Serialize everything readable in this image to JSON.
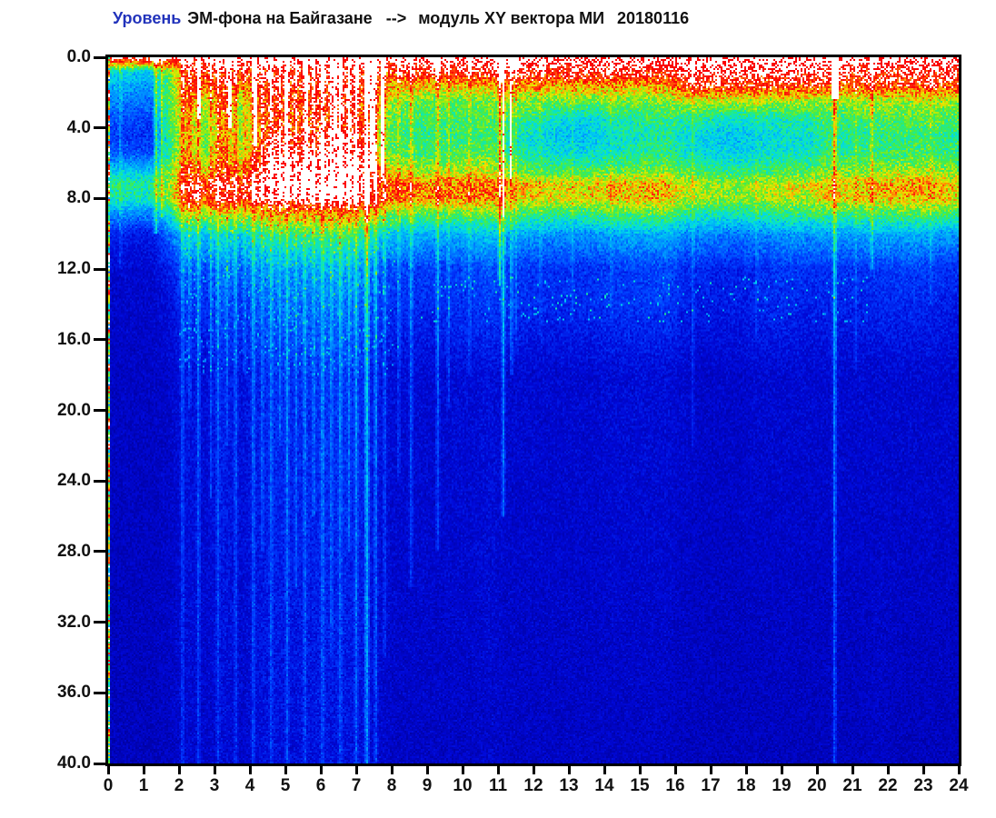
{
  "title": {
    "part1": "Уровень",
    "part2": "ЭМ-фона на Байгазане",
    "arrow": "--&gt;",
    "arrow_text": "-->",
    "part3": "модуль XY вектора МИ",
    "date": "20180116",
    "part1_color": "#2233bb",
    "text_color": "#111111"
  },
  "chart_data": {
    "type": "heatmap",
    "title": "Уровень ЭМ-фона на Байгазане --> модуль XY вектора МИ 20180116",
    "xlabel": "",
    "ylabel": "",
    "xlim": [
      0,
      24
    ],
    "ylim": [
      0,
      40
    ],
    "y_inverted": true,
    "x_ticks": [
      "0",
      "1",
      "2",
      "3",
      "4",
      "5",
      "6",
      "7",
      "8",
      "9",
      "10",
      "11",
      "12",
      "13",
      "14",
      "15",
      "16",
      "17",
      "18",
      "19",
      "20",
      "21",
      "22",
      "23",
      "24"
    ],
    "y_ticks": [
      "0.0",
      "4.0",
      "8.0",
      "12.0",
      "16.0",
      "20.0",
      "24.0",
      "28.0",
      "32.0",
      "36.0",
      "40.0"
    ],
    "grid": false,
    "legend": false,
    "colormap": "jet with over-saturation rendered white",
    "colormap_stops": [
      [
        0.0,
        0,
        0,
        160
      ],
      [
        0.08,
        0,
        8,
        215
      ],
      [
        0.16,
        0,
        60,
        255
      ],
      [
        0.26,
        0,
        150,
        255
      ],
      [
        0.36,
        0,
        215,
        235
      ],
      [
        0.44,
        25,
        235,
        155
      ],
      [
        0.52,
        70,
        235,
        70
      ],
      [
        0.6,
        155,
        235,
        15
      ],
      [
        0.68,
        235,
        230,
        0
      ],
      [
        0.76,
        255,
        150,
        0
      ],
      [
        0.84,
        255,
        55,
        10
      ],
      [
        0.93,
        248,
        5,
        8
      ],
      [
        0.985,
        255,
        0,
        0
      ]
    ],
    "white_above": 0.985,
    "intensity_scale": {
      "min": 0,
      "max": 100,
      "note": "relative units estimated from colors; >97 renders white"
    },
    "time_slot_hours": 0.5,
    "depth_nodes": [
      0,
      0.8,
      1.6,
      2.5,
      3.5,
      4.5,
      5.5,
      6.5,
      7.2,
      8,
      8.8,
      10,
      12,
      13.8,
      18,
      40
    ],
    "intensity_grid": [
      [
        102,
        102,
        102,
        102,
        102,
        102,
        102,
        102,
        102,
        102,
        102,
        102,
        102,
        102,
        102,
        102,
        102,
        102,
        102,
        102,
        102,
        102,
        102,
        102,
        102,
        102,
        102,
        102,
        102,
        102,
        102,
        102,
        102,
        102,
        102,
        102,
        102,
        102,
        102,
        102,
        102,
        102,
        102,
        102,
        102,
        102,
        102,
        102
      ],
      [
        38,
        36,
        35,
        60,
        90,
        88,
        92,
        87,
        91,
        95,
        93,
        94,
        96,
        96,
        92,
        88,
        94,
        94,
        95,
        95,
        96,
        96,
        97,
        97,
        97,
        96,
        96,
        97,
        97,
        96,
        97,
        97,
        100,
        100,
        99,
        99,
        100,
        99,
        100,
        99,
        98,
        97,
        96,
        97,
        97,
        98,
        98,
        97
      ],
      [
        30,
        28,
        27,
        52,
        86,
        78,
        88,
        72,
        86,
        92,
        88,
        90,
        92,
        95,
        88,
        75,
        72,
        71,
        70,
        71,
        72,
        73,
        76,
        77,
        76,
        75,
        76,
        77,
        76,
        75,
        76,
        77,
        92,
        93,
        92,
        91,
        92,
        91,
        92,
        91,
        88,
        86,
        87,
        88,
        88,
        89,
        90,
        88
      ],
      [
        24,
        23,
        22,
        55,
        80,
        62,
        84,
        60,
        82,
        90,
        85,
        88,
        90,
        94,
        86,
        70,
        55,
        54,
        52,
        53,
        54,
        56,
        58,
        57,
        56,
        55,
        54,
        55,
        56,
        55,
        56,
        58,
        62,
        63,
        62,
        61,
        62,
        61,
        62,
        61,
        60,
        59,
        60,
        61,
        60,
        61,
        62,
        60
      ],
      [
        18,
        17,
        17,
        50,
        75,
        55,
        80,
        55,
        78,
        88,
        82,
        86,
        88,
        92,
        80,
        60,
        50,
        49,
        48,
        49,
        50,
        52,
        48,
        46,
        42,
        38,
        36,
        38,
        42,
        44,
        46,
        48,
        45,
        44,
        40,
        38,
        40,
        42,
        44,
        43,
        50,
        48,
        49,
        50,
        51,
        52,
        53,
        50
      ],
      [
        15,
        14,
        14,
        48,
        72,
        52,
        78,
        58,
        80,
        95,
        90,
        92,
        95,
        98,
        85,
        55,
        48,
        47,
        46,
        47,
        49,
        51,
        42,
        40,
        36,
        33,
        32,
        34,
        38,
        40,
        42,
        44,
        38,
        36,
        34,
        33,
        35,
        37,
        39,
        38,
        46,
        44,
        45,
        46,
        47,
        48,
        48,
        46
      ],
      [
        20,
        19,
        18,
        48,
        75,
        55,
        80,
        62,
        85,
        98,
        95,
        97,
        100,
        102,
        90,
        60,
        52,
        50,
        49,
        50,
        52,
        54,
        45,
        43,
        40,
        38,
        37,
        39,
        42,
        44,
        46,
        47,
        40,
        38,
        36,
        35,
        37,
        39,
        41,
        40,
        48,
        46,
        47,
        48,
        49,
        50,
        50,
        48
      ],
      [
        35,
        34,
        33,
        58,
        85,
        70,
        88,
        75,
        92,
        102,
        100,
        102,
        103,
        104,
        95,
        75,
        64,
        62,
        60,
        62,
        64,
        66,
        56,
        54,
        52,
        50,
        50,
        52,
        54,
        55,
        56,
        58,
        52,
        50,
        48,
        47,
        49,
        51,
        53,
        52,
        58,
        56,
        57,
        59,
        60,
        62,
        62,
        58
      ],
      [
        46,
        45,
        44,
        62,
        95,
        85,
        98,
        88,
        100,
        104,
        103,
        104,
        105,
        105,
        100,
        88,
        82,
        80,
        78,
        79,
        81,
        83,
        74,
        72,
        70,
        68,
        68,
        70,
        72,
        73,
        74,
        76,
        64,
        62,
        60,
        59,
        61,
        63,
        66,
        64,
        72,
        70,
        71,
        73,
        74,
        76,
        75,
        70
      ],
      [
        42,
        41,
        40,
        58,
        90,
        82,
        94,
        85,
        95,
        100,
        98,
        100,
        102,
        102,
        96,
        84,
        78,
        76,
        75,
        76,
        78,
        80,
        71,
        70,
        68,
        66,
        66,
        68,
        70,
        71,
        72,
        73,
        61,
        60,
        58,
        57,
        59,
        61,
        63,
        62,
        69,
        68,
        69,
        70,
        71,
        73,
        72,
        68
      ],
      [
        26,
        25,
        25,
        42,
        65,
        58,
        68,
        60,
        70,
        75,
        72,
        74,
        76,
        76,
        70,
        60,
        56,
        54,
        52,
        53,
        55,
        57,
        52,
        50,
        48,
        47,
        47,
        49,
        51,
        52,
        53,
        54,
        46,
        44,
        43,
        42,
        44,
        46,
        48,
        47,
        50,
        49,
        50,
        51,
        52,
        53,
        52,
        49
      ],
      [
        12,
        11,
        11,
        22,
        36,
        32,
        40,
        34,
        42,
        46,
        44,
        46,
        48,
        48,
        42,
        34,
        32,
        30,
        29,
        30,
        32,
        34,
        29,
        28,
        27,
        26,
        26,
        27,
        29,
        30,
        30,
        31,
        26,
        25,
        24,
        23,
        25,
        26,
        28,
        27,
        28,
        27,
        28,
        29,
        29,
        30,
        29,
        27
      ],
      [
        7,
        7,
        7,
        12,
        20,
        17,
        23,
        18,
        24,
        27,
        25,
        27,
        29,
        29,
        24,
        18,
        17,
        16,
        15,
        16,
        17,
        19,
        15,
        15,
        14,
        14,
        14,
        14,
        15,
        16,
        16,
        17,
        13,
        13,
        12,
        12,
        13,
        14,
        15,
        14,
        14,
        14,
        14,
        15,
        15,
        16,
        15,
        14
      ],
      [
        6,
        6,
        6,
        9,
        15,
        13,
        18,
        14,
        19,
        21,
        20,
        21,
        23,
        23,
        19,
        14,
        14,
        13,
        13,
        14,
        15,
        16,
        14,
        14,
        13,
        13,
        13,
        14,
        15,
        15,
        15,
        16,
        12,
        11,
        11,
        11,
        12,
        13,
        13,
        12,
        12,
        12,
        12,
        13,
        13,
        13,
        12,
        11
      ],
      [
        5,
        5,
        5,
        6,
        10,
        8,
        12,
        9,
        12,
        14,
        13,
        14,
        15,
        15,
        12,
        9,
        8,
        8,
        7,
        8,
        8,
        9,
        7,
        7,
        7,
        7,
        7,
        7,
        8,
        8,
        8,
        8,
        7,
        6,
        6,
        6,
        7,
        7,
        7,
        7,
        7,
        7,
        7,
        7,
        7,
        7,
        7,
        7
      ],
      [
        4,
        4,
        4,
        5,
        7,
        6,
        8,
        6,
        8,
        9,
        8,
        9,
        9,
        9,
        8,
        6,
        5,
        5,
        5,
        5,
        5,
        6,
        5,
        5,
        5,
        5,
        5,
        5,
        5,
        5,
        5,
        5,
        4,
        4,
        4,
        4,
        4,
        4,
        4,
        4,
        4,
        4,
        4,
        5,
        4,
        4,
        4,
        4
      ]
    ],
    "vertical_streaks": [
      [
        0.35,
        0.1,
        12,
        0.04
      ],
      [
        1.35,
        0.3,
        10,
        0.05
      ],
      [
        1.52,
        0.25,
        9,
        0.04
      ],
      [
        2.1,
        0.22,
        40,
        0.05
      ],
      [
        2.3,
        0.15,
        20,
        0.04
      ],
      [
        2.55,
        0.25,
        40,
        0.05
      ],
      [
        2.9,
        0.18,
        25,
        0.04
      ],
      [
        3.1,
        0.2,
        40,
        0.05
      ],
      [
        3.35,
        0.15,
        22,
        0.04
      ],
      [
        3.6,
        0.22,
        40,
        0.05
      ],
      [
        3.85,
        0.15,
        18,
        0.04
      ],
      [
        4.1,
        0.25,
        40,
        0.05
      ],
      [
        4.35,
        0.18,
        28,
        0.04
      ],
      [
        4.6,
        0.2,
        40,
        0.05
      ],
      [
        4.85,
        0.15,
        22,
        0.04
      ],
      [
        5.05,
        0.25,
        40,
        0.05
      ],
      [
        5.3,
        0.18,
        30,
        0.04
      ],
      [
        5.55,
        0.22,
        40,
        0.05
      ],
      [
        5.8,
        0.18,
        26,
        0.04
      ],
      [
        6.05,
        0.25,
        40,
        0.05
      ],
      [
        6.3,
        0.2,
        34,
        0.04
      ],
      [
        6.55,
        0.22,
        40,
        0.05
      ],
      [
        6.8,
        0.18,
        28,
        0.04
      ],
      [
        7.0,
        0.28,
        40,
        0.05
      ],
      [
        7.3,
        0.5,
        40,
        0.06
      ],
      [
        7.55,
        0.3,
        40,
        0.05
      ],
      [
        7.8,
        0.22,
        34,
        0.04
      ],
      [
        8.2,
        0.18,
        24,
        0.04
      ],
      [
        8.55,
        0.22,
        30,
        0.05
      ],
      [
        9.3,
        0.25,
        28,
        0.05
      ],
      [
        9.6,
        0.15,
        20,
        0.04
      ],
      [
        10.2,
        0.12,
        18,
        0.04
      ],
      [
        11.05,
        0.4,
        13,
        0.04
      ],
      [
        11.15,
        0.35,
        26,
        0.05
      ],
      [
        11.38,
        0.2,
        18,
        0.04
      ],
      [
        11.5,
        0.12,
        16,
        0.04
      ],
      [
        12.2,
        0.1,
        16,
        0.04
      ],
      [
        13.1,
        0.08,
        15,
        0.04
      ],
      [
        14.2,
        0.08,
        15,
        0.04
      ],
      [
        16.5,
        0.12,
        22,
        0.04
      ],
      [
        18.3,
        0.08,
        16,
        0.04
      ],
      [
        20.5,
        0.38,
        40,
        0.05
      ],
      [
        21.1,
        0.1,
        18,
        0.04
      ],
      [
        21.55,
        0.22,
        12,
        0.04
      ],
      [
        23.2,
        0.08,
        14,
        0.04
      ]
    ],
    "white_columns": [
      [
        2.55,
        0.06,
        3.5
      ],
      [
        3.42,
        0.05,
        4.0
      ],
      [
        4.15,
        0.04,
        5.0
      ],
      [
        5.02,
        0.05,
        5.5
      ],
      [
        5.62,
        0.04,
        6.0
      ],
      [
        6.42,
        0.04,
        5.0
      ],
      [
        7.45,
        0.07,
        6.5
      ],
      [
        7.72,
        0.05,
        7.0
      ],
      [
        11.15,
        0.04,
        9.0
      ],
      [
        11.38,
        0.025,
        7.0
      ],
      [
        20.5,
        0.1,
        2.4
      ]
    ],
    "speckle_bands": [
      {
        "t0": 8.8,
        "t1": 21.5,
        "d0": 12.4,
        "d1": 15.0,
        "density": 0.03,
        "boost": 0.22
      },
      {
        "t0": 2.0,
        "t1": 8.2,
        "d0": 9.0,
        "d1": 18.0,
        "density": 0.05,
        "boost": 0.15
      }
    ],
    "left_edge_artifact": "dotted multicolor column at t=0"
  }
}
